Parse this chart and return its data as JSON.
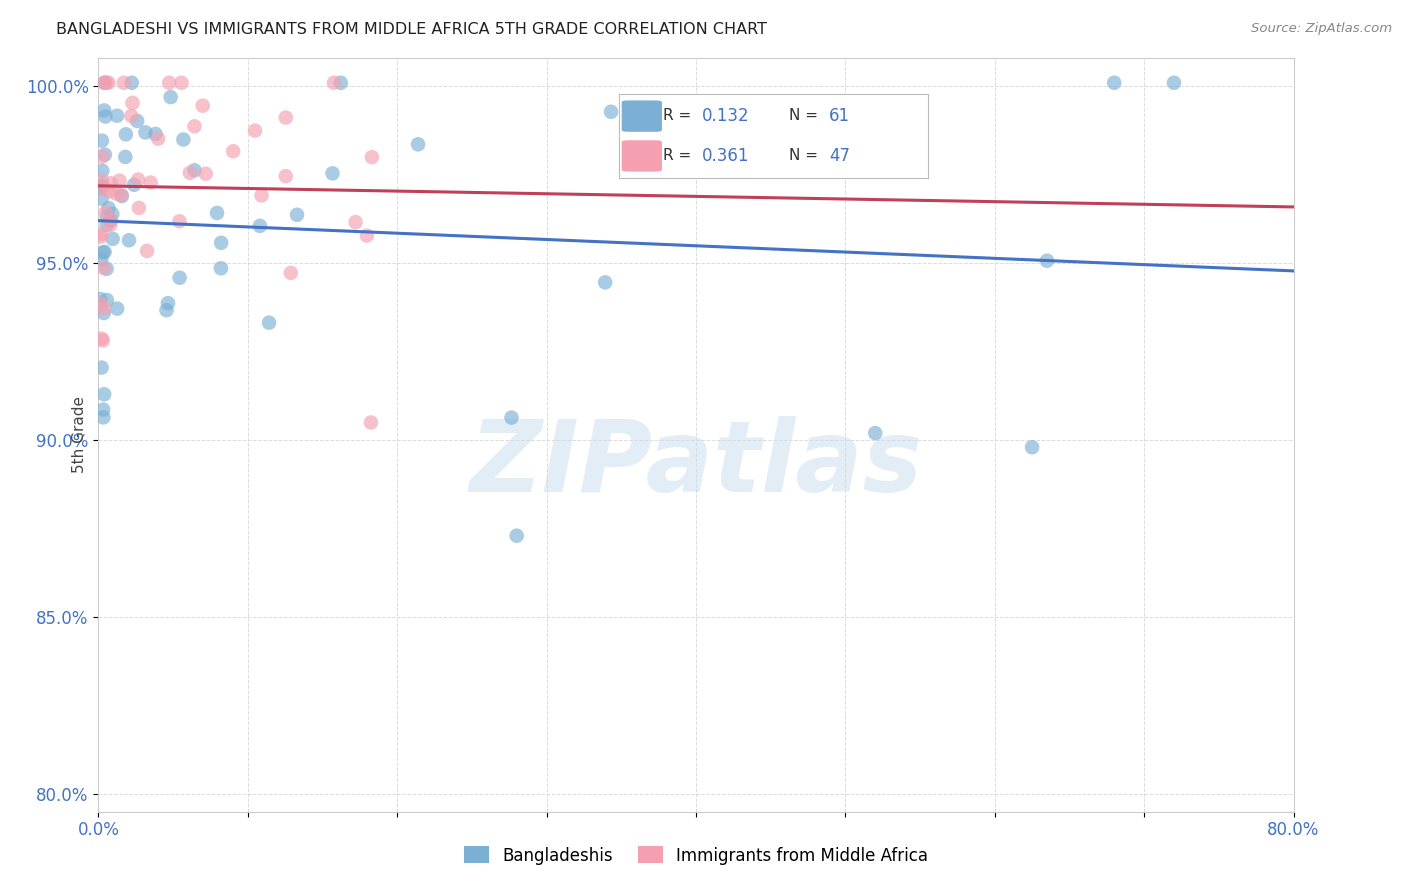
{
  "title": "BANGLADESHI VS IMMIGRANTS FROM MIDDLE AFRICA 5TH GRADE CORRELATION CHART",
  "source": "Source: ZipAtlas.com",
  "ylabel": "5th Grade",
  "xlim": [
    0.0,
    0.8
  ],
  "ylim": [
    0.795,
    1.008
  ],
  "xtick_positions": [
    0.0,
    0.1,
    0.2,
    0.3,
    0.4,
    0.5,
    0.6,
    0.7,
    0.8
  ],
  "xticklabels": [
    "0.0%",
    "",
    "",
    "",
    "",
    "",
    "",
    "",
    "80.0%"
  ],
  "ytick_positions": [
    0.8,
    0.85,
    0.9,
    0.95,
    1.0
  ],
  "yticklabels": [
    "80.0%",
    "85.0%",
    "90.0%",
    "95.0%",
    "100.0%"
  ],
  "blue_R": 0.132,
  "blue_N": 61,
  "pink_R": 0.361,
  "pink_N": 47,
  "blue_color": "#7BAFD4",
  "pink_color": "#F4A0B0",
  "blue_line_color": "#4472C4",
  "pink_line_color": "#C0405A",
  "legend_label_blue": "Bangladeshis",
  "legend_label_pink": "Immigrants from Middle Africa",
  "watermark_text": "ZIPatlas",
  "watermark_color": "#C8DCEE",
  "grid_color": "#CCCCCC",
  "background_color": "#FFFFFF",
  "title_color": "#222222",
  "source_color": "#888888",
  "tick_color": "#4472C4",
  "ylabel_color": "#444444",
  "legend_R_N_color": "#4472C4",
  "legend_text_color": "#333333"
}
